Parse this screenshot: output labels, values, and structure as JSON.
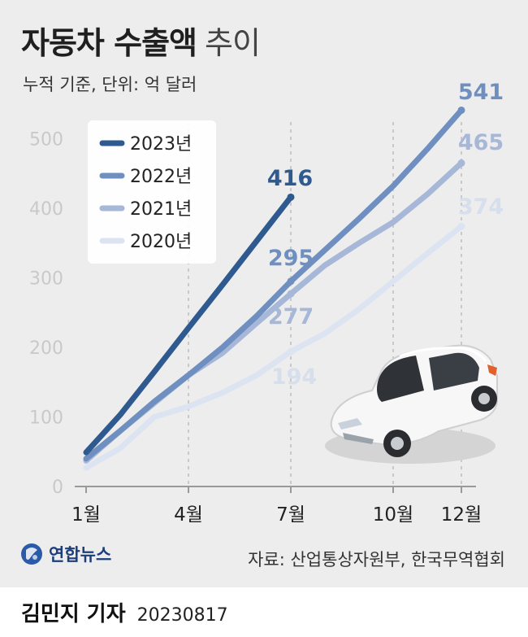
{
  "header": {
    "title_bold": "자동차 수출액",
    "title_light": "추이",
    "subtitle": "누적 기준, 단위: 억 달러"
  },
  "chart_data": {
    "type": "line",
    "title": "자동차 수출액 추이",
    "subtitle": "누적 기준, 단위: 억 달러",
    "x_ticks": [
      "1월",
      "4월",
      "7월",
      "10월",
      "12월"
    ],
    "x_tick_months": [
      1,
      4,
      7,
      10,
      12
    ],
    "y_ticks": [
      0,
      100,
      200,
      300,
      400,
      500
    ],
    "ylim": [
      0,
      560
    ],
    "xlim": [
      1,
      12
    ],
    "grid": "vertical dashed at labeled months",
    "legend": "top-left",
    "series": [
      {
        "name": "2023년",
        "color": "#2f5a8f",
        "x": [
          1,
          2,
          3,
          4,
          5,
          6,
          7
        ],
        "y": [
          49,
          103,
          165,
          228,
          290,
          353,
          416
        ],
        "end_label": "416"
      },
      {
        "name": "2022년",
        "color": "#6e8fc0",
        "x": [
          1,
          2,
          3,
          4,
          5,
          6,
          7,
          8,
          9,
          10,
          11,
          12
        ],
        "y": [
          40,
          80,
          122,
          160,
          200,
          245,
          295,
          340,
          385,
          432,
          485,
          541
        ],
        "end_label": "541",
        "mid_label": "295"
      },
      {
        "name": "2021년",
        "color": "#a7b7d8",
        "x": [
          1,
          2,
          3,
          4,
          5,
          6,
          7,
          8,
          9,
          10,
          11,
          12
        ],
        "y": [
          37,
          80,
          120,
          160,
          192,
          235,
          277,
          318,
          350,
          380,
          420,
          465
        ],
        "end_label": "465",
        "mid_label": "277"
      },
      {
        "name": "2020년",
        "color": "#dde4f1",
        "x": [
          1,
          2,
          3,
          4,
          5,
          6,
          7,
          8,
          9,
          10,
          11,
          12
        ],
        "y": [
          27,
          55,
          100,
          115,
          135,
          160,
          194,
          220,
          255,
          295,
          335,
          374
        ],
        "end_label": "374",
        "mid_label": "194"
      }
    ]
  },
  "logo_text": "연합뉴스",
  "source": "자료: 산업통상자원부, 한국무역협회",
  "footer": {
    "author": "김민지 기자",
    "date": "20230817"
  }
}
